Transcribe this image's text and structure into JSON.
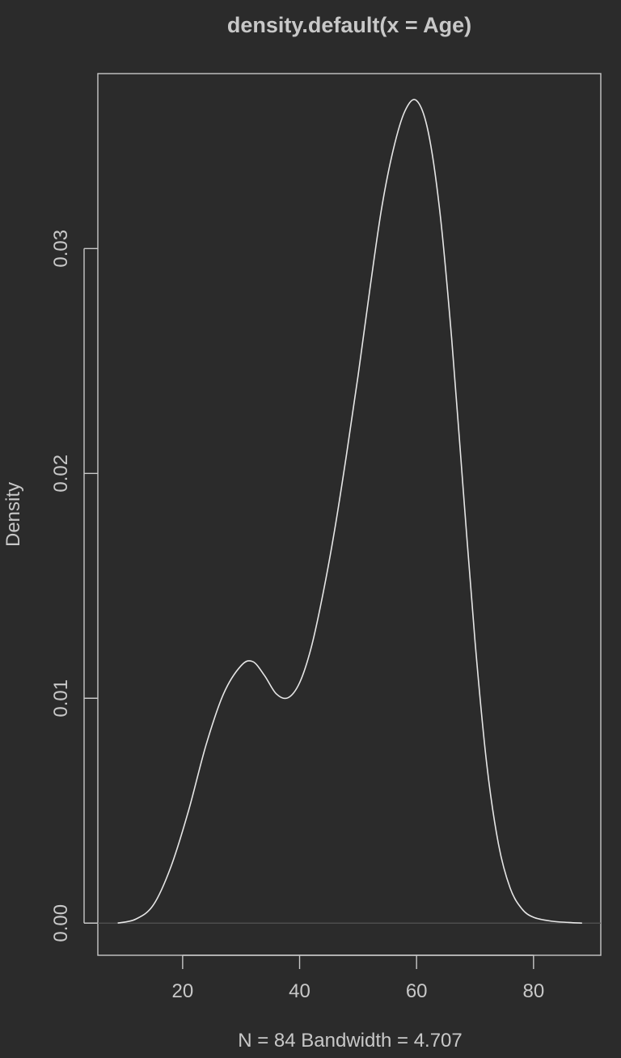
{
  "chart_data": {
    "type": "line",
    "title": "density.default(x = Age)",
    "xlabel": "N = 84   Bandwidth = 4.707",
    "ylabel": "Density",
    "xlim": [
      5.5,
      91.5
    ],
    "ylim": [
      -0.00143,
      0.03778
    ],
    "x_ticks": [
      {
        "value": 20,
        "label": "20"
      },
      {
        "value": 40,
        "label": "40"
      },
      {
        "value": 60,
        "label": "60"
      },
      {
        "value": 80,
        "label": "80"
      }
    ],
    "y_ticks": [
      {
        "value": 0.0,
        "label": "0.00"
      },
      {
        "value": 0.01,
        "label": "0.01"
      },
      {
        "value": 0.02,
        "label": "0.02"
      },
      {
        "value": 0.03,
        "label": "0.03"
      }
    ],
    "series": [
      {
        "x": [
          8.9,
          12,
          15,
          18,
          21,
          24,
          27,
          30,
          32,
          34,
          36,
          38,
          40,
          42,
          44,
          46,
          48,
          50,
          52,
          54,
          56,
          58,
          60,
          62,
          64,
          66,
          68,
          70,
          72,
          74,
          76,
          78,
          80,
          83,
          86,
          88.3
        ],
        "y": [
          0.0,
          0.00018,
          0.00081,
          0.00251,
          0.00499,
          0.00792,
          0.0102,
          0.01145,
          0.01163,
          0.01101,
          0.0102,
          0.01002,
          0.01069,
          0.01227,
          0.01465,
          0.0175,
          0.0208,
          0.02435,
          0.02816,
          0.03175,
          0.03438,
          0.03611,
          0.03658,
          0.03518,
          0.0316,
          0.026,
          0.0192,
          0.01252,
          0.00707,
          0.00352,
          0.00156,
          0.00064,
          0.00026,
          9e-05,
          3e-05,
          0.0
        ]
      }
    ],
    "grid": false,
    "background": "#2b2b2b",
    "foreground": "#c8c8c8",
    "line_color": "#e6e6e6"
  }
}
